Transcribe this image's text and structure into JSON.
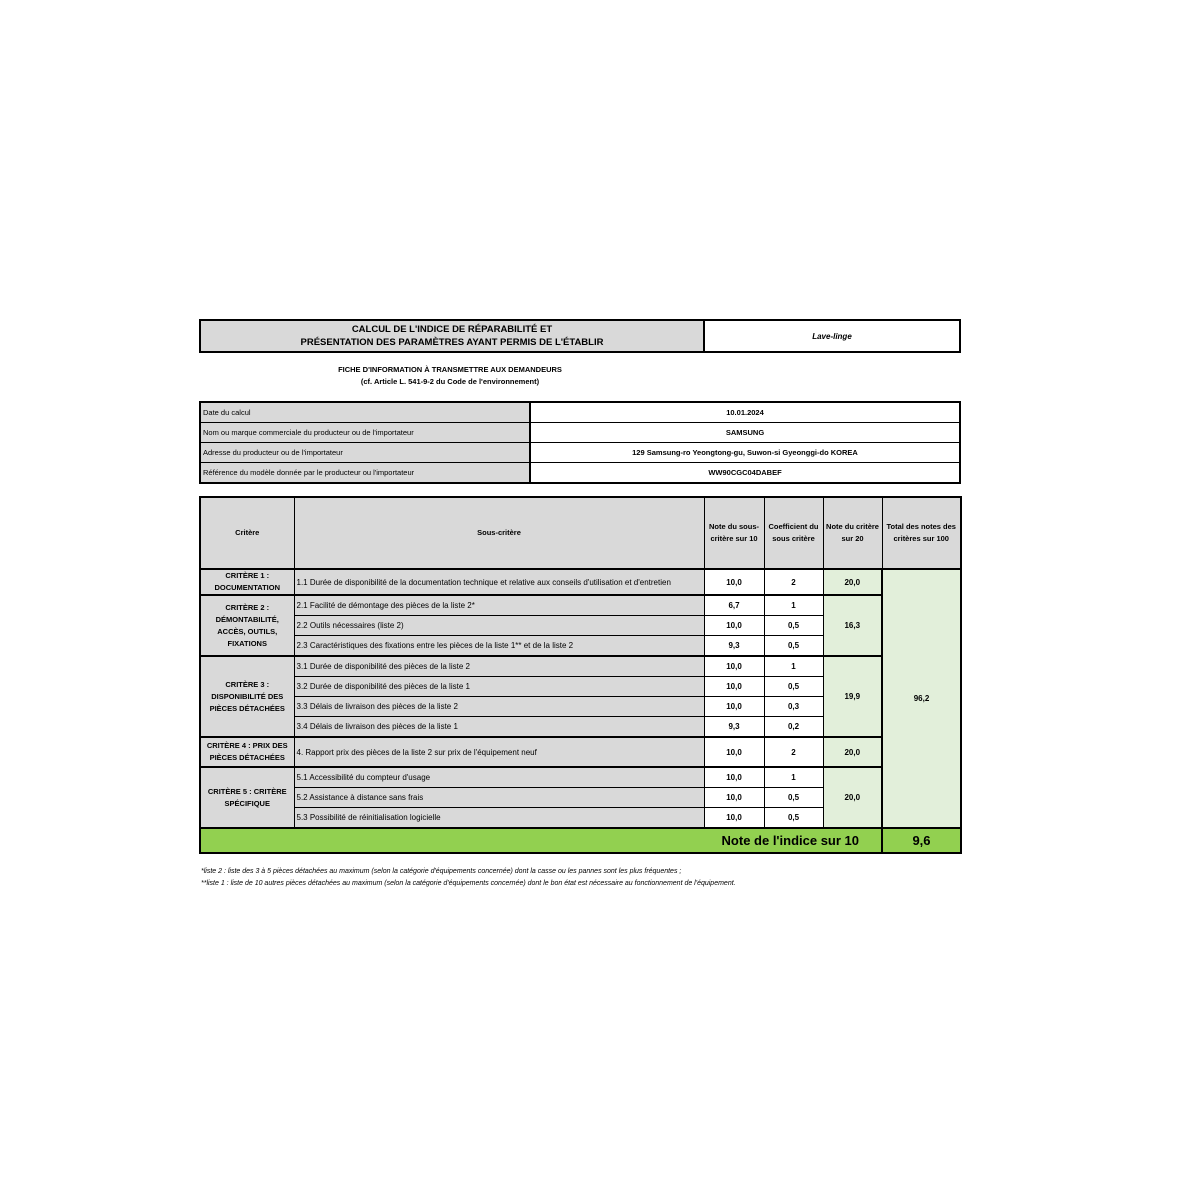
{
  "header": {
    "title_line1": "CALCUL DE L'INDICE DE RÉPARABILITÉ ET",
    "title_line2": "PRÉSENTATION DES PARAMÈTRES AYANT PERMIS DE L'ÉTABLIR",
    "product_type": "Lave-linge"
  },
  "subtitle": {
    "line1": "FICHE D'INFORMATION À TRANSMETTRE AUX DEMANDEURS",
    "line2": "(cf. Article L. 541-9-2 du Code de l'environnement)"
  },
  "info": [
    {
      "label": "Date du calcul",
      "value": "10.01.2024"
    },
    {
      "label": "Nom ou marque commerciale du producteur ou de l'importateur",
      "value": "SAMSUNG"
    },
    {
      "label": "Adresse du producteur ou de l'importateur",
      "value": "129 Samsung-ro Yeongtong-gu, Suwon-si Gyeonggi-do KOREA"
    },
    {
      "label": "Référence du modèle donnée par le producteur ou l'importateur",
      "value": "WW90CGC04DABEF"
    }
  ],
  "table": {
    "headers": [
      "Critère",
      "Sous-critère",
      "Note du sous-critère sur 10",
      "Coefficient du sous critère",
      "Note du critère sur 20",
      "Total des notes des critères sur 100"
    ],
    "criteria": [
      {
        "name": "CRITÈRE 1 : DOCUMENTATION",
        "score": "20,0",
        "sub": [
          {
            "label": "1.1 Durée de disponibilité de la documentation technique et relative aux conseils d'utilisation et d'entretien",
            "note": "10,0",
            "coef": "2"
          }
        ]
      },
      {
        "name": "CRITÈRE 2 : DÉMONTABILITÉ, ACCÈS, OUTILS, FIXATIONS",
        "score": "16,3",
        "sub": [
          {
            "label": "2.1 Facilité de démontage des pièces de la liste 2*",
            "note": "6,7",
            "coef": "1"
          },
          {
            "label": "2.2 Outils nécessaires (liste 2)",
            "note": "10,0",
            "coef": "0,5"
          },
          {
            "label": "2.3 Caractéristiques des fixations entre les pièces de la liste 1** et de la liste 2",
            "note": "9,3",
            "coef": "0,5"
          }
        ]
      },
      {
        "name": "CRITÈRE 3 : DISPONIBILITÉ DES PIÈCES DÉTACHÉES",
        "score": "19,9",
        "sub": [
          {
            "label": "3.1 Durée de disponibilité des pièces de la liste 2",
            "note": "10,0",
            "coef": "1"
          },
          {
            "label": "3.2 Durée de disponibilité des pièces de la liste 1",
            "note": "10,0",
            "coef": "0,5"
          },
          {
            "label": "3.3 Délais de livraison des pièces de la liste 2",
            "note": "10,0",
            "coef": "0,3"
          },
          {
            "label": "3.4 Délais de livraison des pièces de la liste 1",
            "note": "9,3",
            "coef": "0,2"
          }
        ]
      },
      {
        "name": "CRITÈRE 4 : PRIX DES PIÈCES DÉTACHÉES",
        "score": "20,0",
        "sub": [
          {
            "label": "4. Rapport prix des pièces de la liste 2 sur prix de l'équipement neuf",
            "note": "10,0",
            "coef": "2"
          }
        ]
      },
      {
        "name": "CRITÈRE 5 : CRITÈRE SPÉCIFIQUE",
        "score": "20,0",
        "sub": [
          {
            "label": "5.1 Accessibilité du compteur d'usage",
            "note": "10,0",
            "coef": "1"
          },
          {
            "label": "5.2 Assistance à distance sans frais",
            "note": "10,0",
            "coef": "0,5"
          },
          {
            "label": "5.3 Possibilité de réinitialisation logicielle",
            "note": "10,0",
            "coef": "0,5"
          }
        ]
      }
    ],
    "total": "96,2",
    "final_label": "Note de l'indice sur 10",
    "final_value": "9,6"
  },
  "notes": [
    "*liste 2 : liste des 3 à 5 pièces détachées au maximum (selon la catégorie d'équipements concernée) dont la casse ou les pannes sont les plus fréquentes ;",
    "**liste 1 : liste de 10 autres pièces détachées au maximum (selon la catégorie d'équipements concernée) dont le bon état est nécessaire au fonctionnement de l'équipement."
  ],
  "colors": {
    "header_gray": "#d9d9d9",
    "score_green": "#e2efda",
    "final_green": "#92d050"
  }
}
